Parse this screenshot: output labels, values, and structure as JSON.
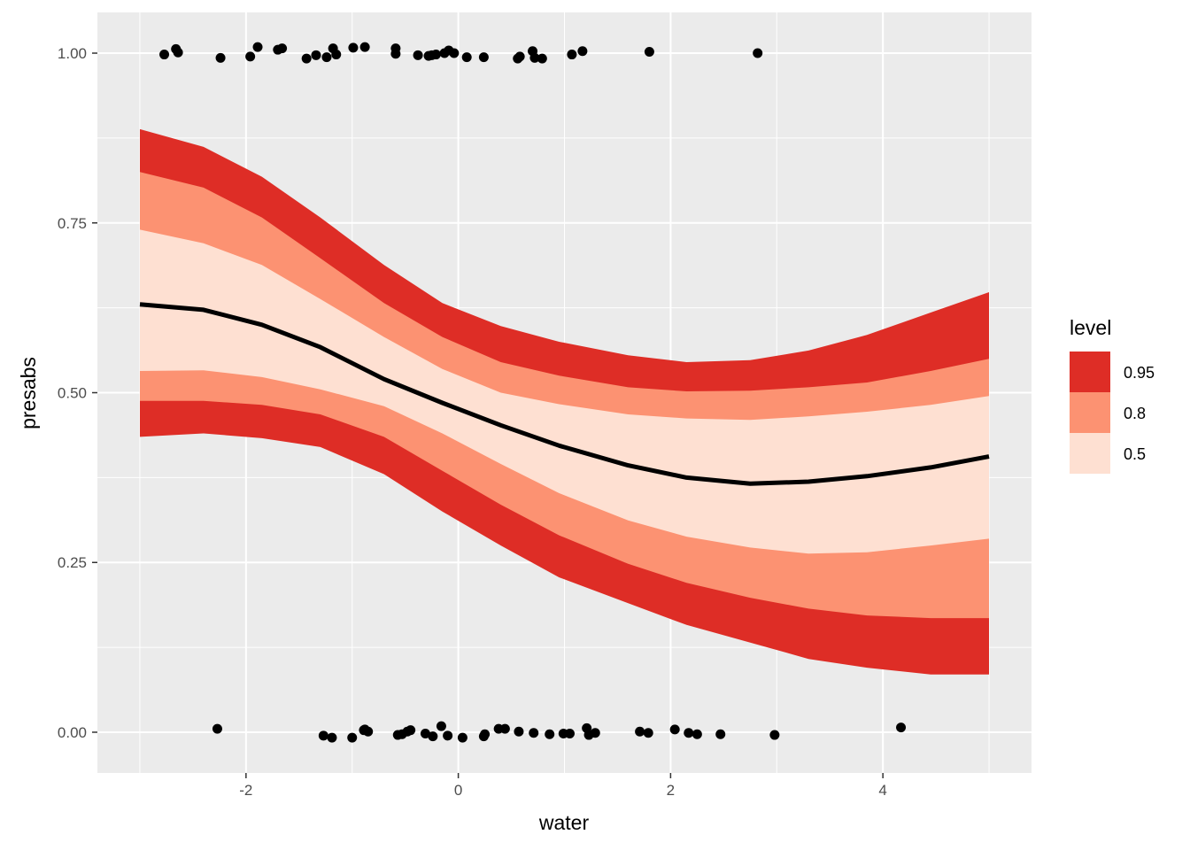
{
  "chart_data": {
    "type": "line",
    "xlabel": "water",
    "ylabel": "presabs",
    "xlim": [
      -3.4,
      5.4
    ],
    "ylim": [
      -0.06,
      1.06
    ],
    "x_ticks": [
      -2,
      0,
      2,
      4
    ],
    "x_tick_labels": [
      "-2",
      "0",
      "2",
      "4"
    ],
    "y_ticks": [
      0,
      0.25,
      0.5,
      0.75,
      1
    ],
    "y_tick_labels": [
      "0.00",
      "0.25",
      "0.50",
      "0.75",
      "1.00"
    ],
    "grid": true,
    "background": "#ebebeb",
    "legend": {
      "title": "level",
      "position": "right",
      "items": [
        {
          "label": "0.95",
          "color": "#de2d26"
        },
        {
          "label": "0.8",
          "color": "#fc9272"
        },
        {
          "label": "0.5",
          "color": "#fee0d2"
        }
      ]
    },
    "ribbons": {
      "x": [
        -3.0,
        -2.4,
        -1.85,
        -1.3,
        -0.7,
        -0.15,
        0.4,
        0.95,
        1.6,
        2.15,
        2.75,
        3.3,
        3.85,
        4.45,
        5.0
      ],
      "levels": [
        {
          "level": "0.95",
          "color": "#de2d26",
          "lower": [
            0.435,
            0.44,
            0.433,
            0.42,
            0.38,
            0.325,
            0.275,
            0.228,
            0.19,
            0.158,
            0.132,
            0.108,
            0.095,
            0.085,
            0.085
          ],
          "upper": [
            0.888,
            0.862,
            0.818,
            0.758,
            0.688,
            0.632,
            0.598,
            0.575,
            0.555,
            0.545,
            0.548,
            0.562,
            0.585,
            0.618,
            0.648
          ]
        },
        {
          "level": "0.8",
          "color": "#fc9272",
          "lower": [
            0.488,
            0.488,
            0.482,
            0.468,
            0.435,
            0.385,
            0.335,
            0.29,
            0.248,
            0.22,
            0.198,
            0.182,
            0.172,
            0.168,
            0.168
          ],
          "upper": [
            0.825,
            0.802,
            0.758,
            0.698,
            0.632,
            0.582,
            0.545,
            0.525,
            0.508,
            0.502,
            0.503,
            0.508,
            0.515,
            0.532,
            0.55
          ]
        },
        {
          "level": "0.5",
          "color": "#fee0d2",
          "lower": [
            0.532,
            0.533,
            0.523,
            0.505,
            0.48,
            0.44,
            0.395,
            0.352,
            0.312,
            0.288,
            0.272,
            0.263,
            0.265,
            0.275,
            0.285
          ],
          "upper": [
            0.74,
            0.72,
            0.688,
            0.638,
            0.582,
            0.535,
            0.5,
            0.483,
            0.468,
            0.462,
            0.46,
            0.465,
            0.472,
            0.482,
            0.495
          ]
        }
      ]
    },
    "fitted_line": {
      "color": "#000000",
      "x": [
        -3.0,
        -2.4,
        -1.85,
        -1.3,
        -0.7,
        -0.15,
        0.4,
        0.95,
        1.6,
        2.15,
        2.75,
        3.3,
        3.85,
        4.45,
        5.0
      ],
      "y": [
        0.63,
        0.622,
        0.6,
        0.567,
        0.52,
        0.485,
        0.452,
        0.422,
        0.393,
        0.375,
        0.366,
        0.369,
        0.377,
        0.39,
        0.406
      ]
    },
    "points": {
      "color": "#000000",
      "presence_x": [
        -2.77,
        -2.66,
        -2.64,
        -2.24,
        -1.96,
        -1.89,
        -1.7,
        -1.66,
        -1.43,
        -1.34,
        -1.24,
        -1.18,
        -1.15,
        -0.99,
        -0.88,
        -0.59,
        -0.59,
        -0.38,
        -0.28,
        -0.25,
        -0.21,
        -0.13,
        -0.09,
        -0.04,
        0.08,
        0.24,
        0.56,
        0.58,
        0.7,
        0.72,
        0.79,
        1.07,
        1.17,
        1.8,
        2.82
      ],
      "presence_y": [
        0.998,
        1.006,
        1.001,
        0.993,
        0.995,
        1.009,
        1.005,
        1.007,
        0.992,
        0.997,
        0.994,
        1.007,
        0.998,
        1.008,
        1.009,
        0.999,
        1.007,
        0.997,
        0.996,
        0.997,
        0.998,
        1.0,
        1.004,
        1.0,
        0.994,
        0.994,
        0.992,
        0.995,
        1.003,
        0.993,
        0.992,
        0.998,
        1.003,
        1.002,
        1.0
      ],
      "absence_x": [
        -2.27,
        -1.27,
        -1.19,
        -1.0,
        -0.89,
        -0.88,
        -0.85,
        -0.57,
        -0.53,
        -0.48,
        -0.45,
        -0.31,
        -0.24,
        -0.16,
        -0.1,
        0.04,
        0.24,
        0.25,
        0.38,
        0.44,
        0.57,
        0.71,
        0.86,
        0.99,
        1.05,
        1.21,
        1.23,
        1.29,
        1.71,
        1.79,
        2.04,
        2.17,
        2.25,
        2.47,
        2.98,
        4.17
      ],
      "absence_y": [
        0.005,
        -0.005,
        -0.008,
        -0.008,
        0.003,
        0.004,
        0.001,
        -0.004,
        -0.003,
        0.001,
        0.003,
        -0.002,
        -0.006,
        0.009,
        -0.005,
        -0.008,
        -0.006,
        -0.003,
        0.005,
        0.005,
        0.001,
        -0.001,
        -0.003,
        -0.002,
        -0.002,
        0.006,
        -0.004,
        -0.001,
        0.001,
        -0.001,
        0.004,
        -0.001,
        -0.003,
        -0.003,
        -0.004,
        0.007
      ]
    }
  }
}
